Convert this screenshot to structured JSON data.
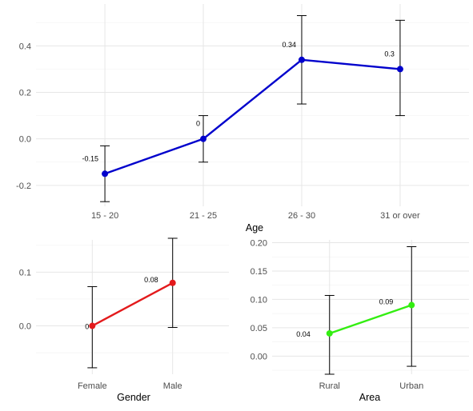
{
  "chart_data": [
    {
      "type": "line",
      "xlabel": "Age",
      "ylabel": "",
      "categories": [
        "15 - 20",
        "21 - 25",
        "26 - 30",
        "31 or over"
      ],
      "values": [
        -0.15,
        0.0,
        0.34,
        0.3
      ],
      "error_low": [
        -0.27,
        -0.1,
        0.15,
        0.1
      ],
      "error_high": [
        -0.03,
        0.1,
        0.53,
        0.51
      ],
      "data_labels": [
        "-0.15",
        "0",
        "0.34",
        "0.3"
      ],
      "y_ticks": [
        "-0.2",
        "0.0",
        "0.2",
        "0.4"
      ],
      "ylim": [
        -0.29,
        0.58
      ],
      "color": "#0000cc",
      "grid": true
    },
    {
      "type": "line",
      "xlabel": "Gender",
      "ylabel": "",
      "categories": [
        "Female",
        "Male"
      ],
      "values": [
        0.0,
        0.08
      ],
      "error_low": [
        -0.078,
        -0.003
      ],
      "error_high": [
        0.073,
        0.163
      ],
      "data_labels": [
        "0",
        "0.08"
      ],
      "y_ticks": [
        "0.0",
        "0.1"
      ],
      "ylim": [
        -0.09,
        0.16
      ],
      "color": "#e31a1c",
      "grid": true
    },
    {
      "type": "line",
      "xlabel": "Area",
      "ylabel": "",
      "categories": [
        "Rural",
        "Urban"
      ],
      "values": [
        0.04,
        0.09
      ],
      "error_low": [
        -0.032,
        -0.018
      ],
      "error_high": [
        0.107,
        0.193
      ],
      "data_labels": [
        "0.04",
        "0.09"
      ],
      "y_ticks": [
        "0.00",
        "0.05",
        "0.10",
        "0.15",
        "0.20"
      ],
      "ylim": [
        -0.032,
        0.205
      ],
      "color": "#33ee11",
      "grid": true
    }
  ]
}
